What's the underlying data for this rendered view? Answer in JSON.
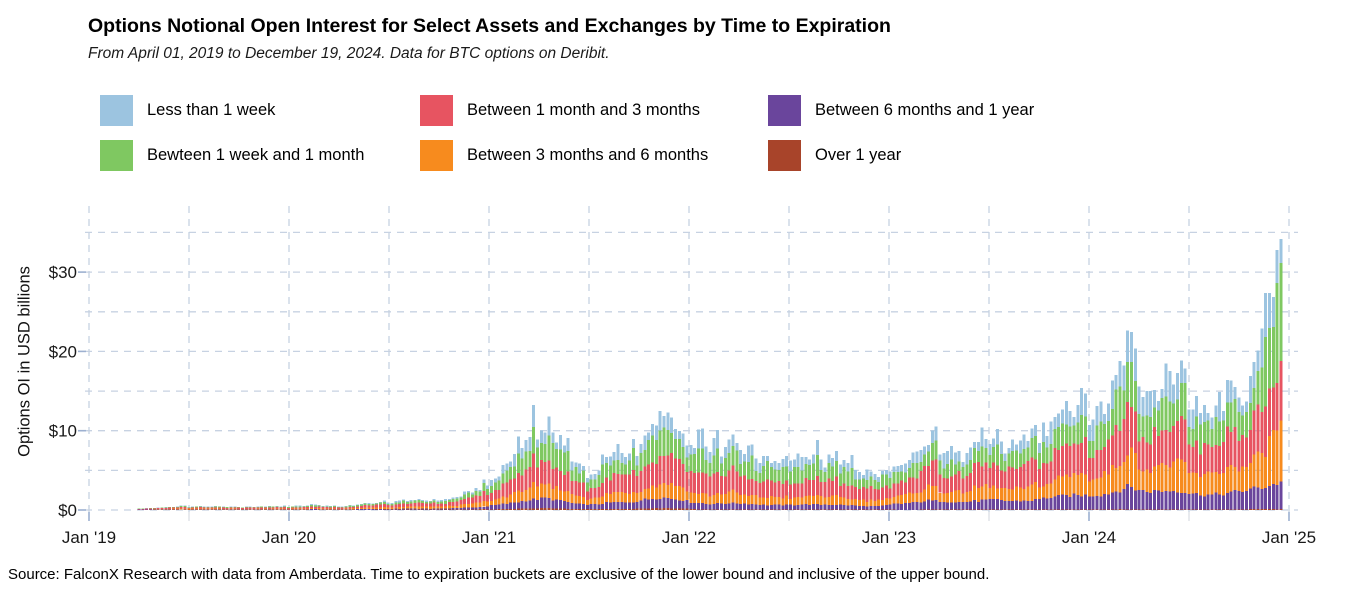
{
  "header": {
    "title": "Options Notional Open Interest for Select Assets and Exchanges by Time to Expiration",
    "subtitle": "From April 01, 2019 to December 19, 2024. Data for BTC options on Deribit."
  },
  "legend": {
    "items": [
      {
        "label": "Less than 1 week",
        "color": "#9cc4e0"
      },
      {
        "label": "Bewteen 1 week and 1 month",
        "color": "#7fc861"
      },
      {
        "label": "Between 1 month and 3 months",
        "color": "#e75461"
      },
      {
        "label": "Between 3 months and 6 months",
        "color": "#f78b1e"
      },
      {
        "label": "Between 6 months and 1 year",
        "color": "#6a459c"
      },
      {
        "label": "Over 1 year",
        "color": "#a8442a"
      }
    ]
  },
  "chart_data": {
    "type": "stacked-bar-time-series",
    "title": "Options Notional Open Interest for Select Assets and Exchanges by Time to Expiration",
    "subtitle": "From April 01, 2019 to December 19, 2024. Data for BTC options on Deribit.",
    "xlabel": "",
    "ylabel": "Options OI in USD billions",
    "x_range": {
      "start": "2019-04-01",
      "end": "2024-12-19"
    },
    "months_start": "2019-04",
    "months_count": 69,
    "x_tick_labels": [
      "Jan '19",
      "Jan '20",
      "Jan '21",
      "Jan '22",
      "Jan '23",
      "Jan '24",
      "Jan '25"
    ],
    "x_minor_ticks": "July of each year",
    "y_tick_labels": [
      "$0",
      "$10",
      "$20",
      "$30"
    ],
    "y_tick_values": [
      0,
      10,
      20,
      30
    ],
    "y_gridline_step": 5,
    "ylim": [
      0,
      38.5
    ],
    "grid": "dashed",
    "grid_color": "#c7d2e2",
    "legend_position": "top",
    "units": "USD billions",
    "series_note": "values are approximate monthly levels in USD billions, stacked bottom-to-top",
    "series": [
      {
        "name": "Over 1 year",
        "color": "#a8442a",
        "values": [
          0.015,
          0.02,
          0.03,
          0.03,
          0.03,
          0.025,
          0.025,
          0.03,
          0.025,
          0.02,
          0.03,
          0.02,
          0.02,
          0.03,
          0.035,
          0.04,
          0.055,
          0.045,
          0.06,
          0.075,
          0.1,
          0.09,
          0.14,
          0.19,
          0.23,
          0.18,
          0.11,
          0.1,
          0.15,
          0.14,
          0.2,
          0.24,
          0.21,
          0.09,
          0.08,
          0.09,
          0.08,
          0.07,
          0.06,
          0.07,
          0.07,
          0.07,
          0.06,
          0.05,
          0.05,
          0.03,
          0.03,
          0.04,
          0.04,
          0.04,
          0.04,
          0.05,
          0.04,
          0.04,
          0.06,
          0.07,
          0.07,
          0.06,
          0.08,
          0.1,
          0.08,
          0.08,
          0.09,
          0.07,
          0.07,
          0.07,
          0.09,
          0.1,
          0.1
        ]
      },
      {
        "name": "Between 6 months and 1 year",
        "color": "#6a459c",
        "values": [
          0.025,
          0.03,
          0.045,
          0.05,
          0.045,
          0.04,
          0.04,
          0.045,
          0.04,
          0.055,
          0.07,
          0.05,
          0.055,
          0.08,
          0.09,
          0.105,
          0.135,
          0.115,
          0.145,
          0.19,
          0.26,
          0.51,
          0.75,
          1.06,
          1.28,
          0.97,
          0.62,
          0.57,
          0.84,
          0.79,
          1.12,
          1.34,
          1.14,
          0.83,
          0.68,
          0.77,
          0.74,
          0.59,
          0.54,
          0.59,
          0.65,
          0.59,
          0.58,
          0.45,
          0.41,
          0.73,
          0.86,
          1.14,
          1.07,
          0.94,
          1.12,
          1.25,
          1.07,
          1.12,
          1.43,
          1.69,
          1.82,
          1.76,
          2.1,
          2.87,
          2.24,
          2.31,
          2.38,
          1.93,
          1.85,
          2.04,
          2.38,
          2.73,
          3.3
        ]
      },
      {
        "name": "Between 3 months and 6 months",
        "color": "#f78b1e",
        "values": [
          0.055,
          0.07,
          0.1,
          0.115,
          0.1,
          0.09,
          0.09,
          0.1,
          0.09,
          0.11,
          0.14,
          0.095,
          0.11,
          0.155,
          0.185,
          0.21,
          0.27,
          0.23,
          0.29,
          0.38,
          0.52,
          0.74,
          1.09,
          1.54,
          1.86,
          1.41,
          0.9,
          0.83,
          1.22,
          1.15,
          1.63,
          1.95,
          1.66,
          1.38,
          1.14,
          1.29,
          1.23,
          0.99,
          0.9,
          0.99,
          1.08,
          0.99,
          0.96,
          0.75,
          0.69,
          1.01,
          1.19,
          1.58,
          1.48,
          1.3,
          1.55,
          1.73,
          1.48,
          1.55,
          1.98,
          2.34,
          2.52,
          2.52,
          3.0,
          4.1,
          3.2,
          3.3,
          3.4,
          2.76,
          2.64,
          2.92,
          3.4,
          4.2,
          6.9
        ]
      },
      {
        "name": "Between 1 month and 3 months",
        "color": "#e75461",
        "values": [
          0.085,
          0.11,
          0.15,
          0.18,
          0.155,
          0.135,
          0.145,
          0.155,
          0.145,
          0.175,
          0.22,
          0.155,
          0.175,
          0.25,
          0.295,
          0.335,
          0.43,
          0.37,
          0.46,
          0.61,
          0.83,
          1.29,
          1.9,
          2.69,
          3.25,
          2.46,
          1.57,
          1.46,
          2.13,
          2.02,
          2.86,
          3.42,
          2.91,
          2.76,
          2.28,
          2.58,
          2.46,
          1.98,
          1.8,
          1.98,
          2.16,
          1.98,
          1.92,
          1.5,
          1.38,
          1.68,
          1.98,
          2.64,
          2.46,
          2.16,
          2.58,
          2.88,
          2.46,
          2.58,
          3.3,
          3.9,
          4.2,
          3.53,
          4.2,
          5.74,
          4.48,
          4.62,
          4.76,
          3.86,
          3.7,
          4.09,
          4.76,
          5.88,
          5.9
        ]
      },
      {
        "name": "Bewteen 1 week and 1 month",
        "color": "#7fc861",
        "values": [
          0.05,
          0.065,
          0.09,
          0.105,
          0.09,
          0.08,
          0.085,
          0.09,
          0.085,
          0.12,
          0.155,
          0.105,
          0.12,
          0.17,
          0.2,
          0.23,
          0.3,
          0.25,
          0.32,
          0.42,
          0.57,
          1.2,
          1.77,
          2.5,
          3.02,
          2.29,
          1.46,
          1.35,
          1.98,
          1.87,
          2.65,
          3.17,
          2.7,
          2.48,
          2.05,
          2.32,
          2.21,
          1.78,
          1.62,
          1.78,
          1.94,
          1.78,
          1.73,
          1.35,
          1.24,
          1.23,
          1.45,
          1.94,
          1.8,
          1.58,
          1.89,
          2.11,
          1.8,
          1.89,
          2.42,
          2.86,
          3.08,
          2.77,
          3.3,
          4.51,
          3.52,
          3.63,
          3.74,
          3.04,
          2.9,
          3.21,
          3.74,
          4.62,
          12.5
        ]
      },
      {
        "name": "Less than 1 week",
        "color": "#9cc4e0",
        "values": [
          0.02,
          0.025,
          0.035,
          0.04,
          0.04,
          0.03,
          0.035,
          0.04,
          0.035,
          0.07,
          0.085,
          0.055,
          0.07,
          0.095,
          0.11,
          0.13,
          0.16,
          0.14,
          0.175,
          0.23,
          0.31,
          0.78,
          1.16,
          1.63,
          1.97,
          1.5,
          0.95,
          0.88,
          1.29,
          1.22,
          1.73,
          2.07,
          1.77,
          1.66,
          1.37,
          1.55,
          1.48,
          1.19,
          1.08,
          1.19,
          1.3,
          1.19,
          1.15,
          0.9,
          0.83,
          0.92,
          1.09,
          1.45,
          1.35,
          1.19,
          1.42,
          1.58,
          1.35,
          1.42,
          1.82,
          2.15,
          2.31,
          1.95,
          2.33,
          3.18,
          2.48,
          2.56,
          2.64,
          2.14,
          2.05,
          2.26,
          2.64,
          3.36,
          4.3
        ]
      }
    ]
  },
  "footer": {
    "source_text": "Source: FalconX Research with data from Amberdata. Time to expiration buckets are exclusive of the lower bound and inclusive of the upper bound."
  }
}
